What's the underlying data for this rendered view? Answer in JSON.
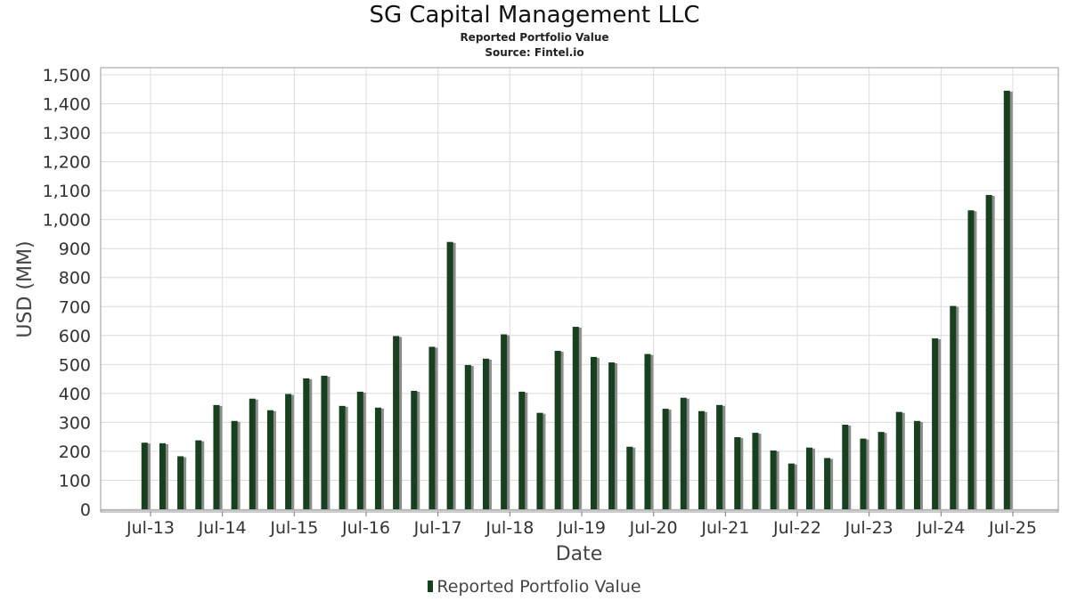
{
  "title": "SG Capital Management LLC",
  "subtitle": "Reported Portfolio Value",
  "source": "Source: Fintel.io",
  "legend_label": "Reported Portfolio Value",
  "colors": {
    "bar": "#17401f",
    "shadow": "#8c8c8c",
    "grid": "#dcdcdc",
    "frame": "#999999"
  },
  "chart_data": {
    "type": "bar",
    "title": "SG Capital Management LLC",
    "subtitle": "Reported Portfolio Value",
    "xlabel": "Date",
    "ylabel": "USD (MM)",
    "ylim": [
      0,
      1500
    ],
    "yticks": [
      0,
      100,
      200,
      300,
      400,
      500,
      600,
      700,
      800,
      900,
      1000,
      1100,
      1200,
      1300,
      1400,
      1500
    ],
    "xtick_labels": [
      "Jul-13",
      "Jul-14",
      "Jul-15",
      "Jul-16",
      "Jul-17",
      "Jul-18",
      "Jul-19",
      "Jul-20",
      "Jul-21",
      "Jul-22",
      "Jul-23",
      "Jul-24",
      "Jul-25"
    ],
    "grid": true,
    "legend_position": "bottom",
    "series": [
      {
        "name": "Reported Portfolio Value",
        "x": [
          "2013-06",
          "2013-09",
          "2013-12",
          "2014-03",
          "2014-06",
          "2014-09",
          "2014-12",
          "2015-03",
          "2015-06",
          "2015-09",
          "2015-12",
          "2016-03",
          "2016-06",
          "2016-09",
          "2016-12",
          "2017-03",
          "2017-06",
          "2017-09",
          "2017-12",
          "2018-03",
          "2018-06",
          "2018-09",
          "2018-12",
          "2019-03",
          "2019-06",
          "2019-09",
          "2019-12",
          "2020-03",
          "2020-06",
          "2020-09",
          "2020-12",
          "2021-03",
          "2021-06",
          "2021-09",
          "2021-12",
          "2022-03",
          "2022-06",
          "2022-09",
          "2022-12",
          "2023-03",
          "2023-06",
          "2023-09",
          "2023-12",
          "2024-03",
          "2024-06",
          "2024-09",
          "2024-12",
          "2025-03",
          "2025-06"
        ],
        "values": [
          230,
          228,
          183,
          238,
          360,
          305,
          382,
          342,
          398,
          452,
          461,
          357,
          406,
          351,
          598,
          409,
          561,
          923,
          498,
          520,
          604,
          406,
          333,
          547,
          630,
          526,
          507,
          216,
          536,
          347,
          385,
          339,
          360,
          249,
          264,
          203,
          158,
          213,
          177,
          292,
          244,
          267,
          336,
          305,
          590,
          702,
          1032,
          1085,
          1445
        ]
      }
    ]
  }
}
